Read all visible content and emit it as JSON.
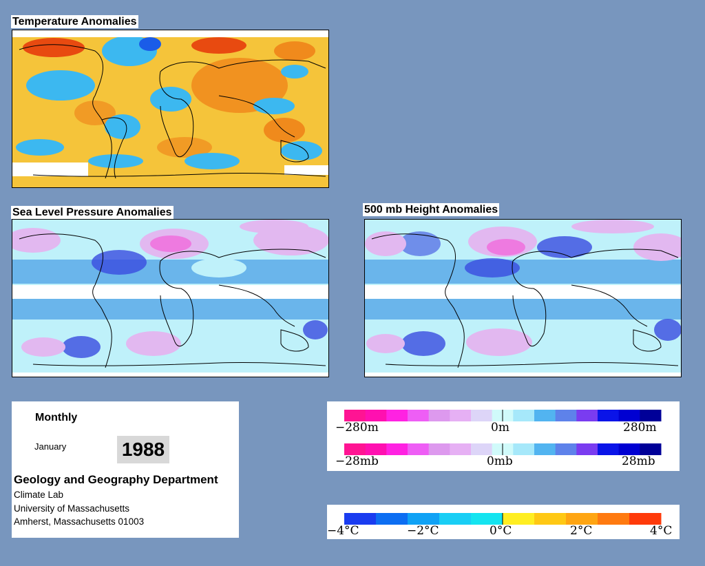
{
  "panels": {
    "temperature": {
      "title": "Temperature Anomalies"
    },
    "pressure": {
      "title": "Sea Level Pressure Anomalies"
    },
    "height": {
      "title": "500 mb Height Anomalies"
    }
  },
  "info": {
    "frequency": "Monthly",
    "month": "January",
    "year": "1988",
    "department": "Geology and Geography Department",
    "lab": "Climate Lab",
    "university": "University of Massachusetts",
    "city": "Amherst, Massachusetts 01003"
  },
  "legends": {
    "height_scale": {
      "min_label": "−280m",
      "mid_label": "0m",
      "max_label": "280m",
      "colors": [
        "#ff1493",
        "#ff10b0",
        "#ff22e2",
        "#ee5ef5",
        "#dd99ee",
        "#e6b0f4",
        "#ddd5f8",
        "#d0fafa",
        "#a6e8fa",
        "#52b4f0",
        "#5e82ea",
        "#7a3cf0",
        "#0a14e8",
        "#0000d2",
        "#000098"
      ]
    },
    "pressure_scale": {
      "min_label": "−28mb",
      "mid_label": "0mb",
      "max_label": "28mb",
      "colors": [
        "#ff1493",
        "#ff10b0",
        "#ff22e2",
        "#ee5ef5",
        "#dd99ee",
        "#e6b0f4",
        "#ddd5f8",
        "#d0fafa",
        "#a6e8fa",
        "#52b4f0",
        "#5e82ea",
        "#7a3cf0",
        "#0a14e8",
        "#0000d2",
        "#000098"
      ]
    },
    "temperature_scale": {
      "min_label": "−4°C",
      "neg_label": "−2°C",
      "mid_label": "0°C",
      "pos_label": "2°C",
      "max_label": "4°C",
      "colors": [
        "#1a3cf0",
        "#0d6ef2",
        "#10a2f5",
        "#19cef5",
        "#14e4f0",
        "#ffee22",
        "#ffc814",
        "#ffa512",
        "#ff7a10",
        "#ff3a0a"
      ]
    }
  },
  "colors": {
    "background": "#7896be",
    "temp_base": "#f5c43a",
    "temp_warm": "#f08a1c",
    "temp_hot": "#e84a10",
    "temp_cool": "#3cb8f0",
    "anom_pos_light": "#e2b8f0",
    "anom_pos": "#ee7ae0",
    "anom_neg_light": "#bff1fa",
    "anom_neg": "#5aaae8",
    "anom_neg_strong": "#3a4ce0"
  }
}
